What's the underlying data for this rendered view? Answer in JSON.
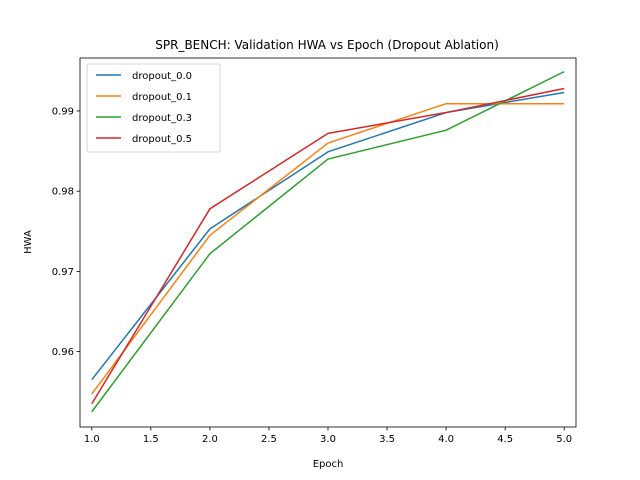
{
  "chart_data": {
    "type": "line",
    "title": "SPR_BENCH: Validation HWA vs Epoch (Dropout Ablation)",
    "xlabel": "Epoch",
    "ylabel": "HWA",
    "xlim": [
      0.9,
      5.1
    ],
    "ylim": [
      0.9506,
      0.9966
    ],
    "xticks": [
      "1.0",
      "1.5",
      "2.0",
      "2.5",
      "3.0",
      "3.5",
      "4.0",
      "4.5",
      "5.0"
    ],
    "yticks": [
      "0.96",
      "0.97",
      "0.98",
      "0.99"
    ],
    "grid": false,
    "legend_position": "top-left",
    "x": [
      1,
      2,
      3,
      4,
      5
    ],
    "series": [
      {
        "name": "dropout_0.0",
        "color": "#1f77b4",
        "values": [
          0.9565,
          0.9753,
          0.9849,
          0.9898,
          0.9923
        ]
      },
      {
        "name": "dropout_0.1",
        "color": "#ff7f0e",
        "values": [
          0.9547,
          0.9745,
          0.986,
          0.9909,
          0.9909
        ]
      },
      {
        "name": "dropout_0.3",
        "color": "#2ca02c",
        "values": [
          0.9525,
          0.9722,
          0.984,
          0.9876,
          0.9949
        ]
      },
      {
        "name": "dropout_0.5",
        "color": "#d62728",
        "values": [
          0.9535,
          0.9778,
          0.9872,
          0.9898,
          0.9928
        ]
      }
    ]
  }
}
